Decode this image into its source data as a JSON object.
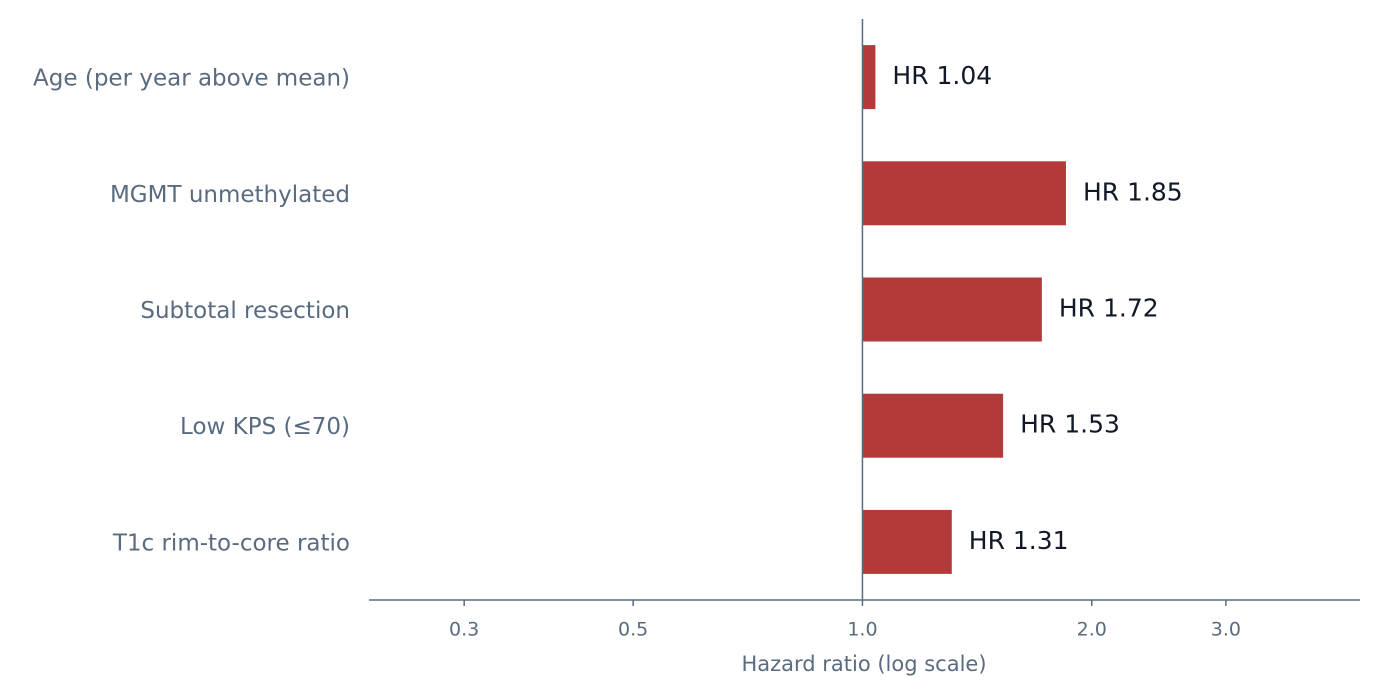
{
  "chart_data": {
    "type": "bar",
    "orientation": "horizontal",
    "categories": [
      "Age (per year above mean)",
      "MGMT unmethylated",
      "Subtotal resection",
      "Low KPS (≤70)",
      "T1c rim-to-core ratio"
    ],
    "values": [
      1.04,
      1.85,
      1.72,
      1.53,
      1.31
    ],
    "value_labels": [
      "HR 1.04",
      "HR 1.85",
      "HR 1.72",
      "HR 1.53",
      "HR 1.31"
    ],
    "color": "#b33a3a",
    "x_label": "Hazard ratio (log scale)",
    "xscale": "log",
    "xlim": [
      0.225,
      4.5
    ],
    "xticks": [
      0.3,
      0.5,
      {
        "value": 1,
        "label": "1.0"
      },
      {
        "value": 2,
        "label": "2.0"
      },
      {
        "value": 3,
        "label": "3.0"
      }
    ],
    "grid": false
  }
}
